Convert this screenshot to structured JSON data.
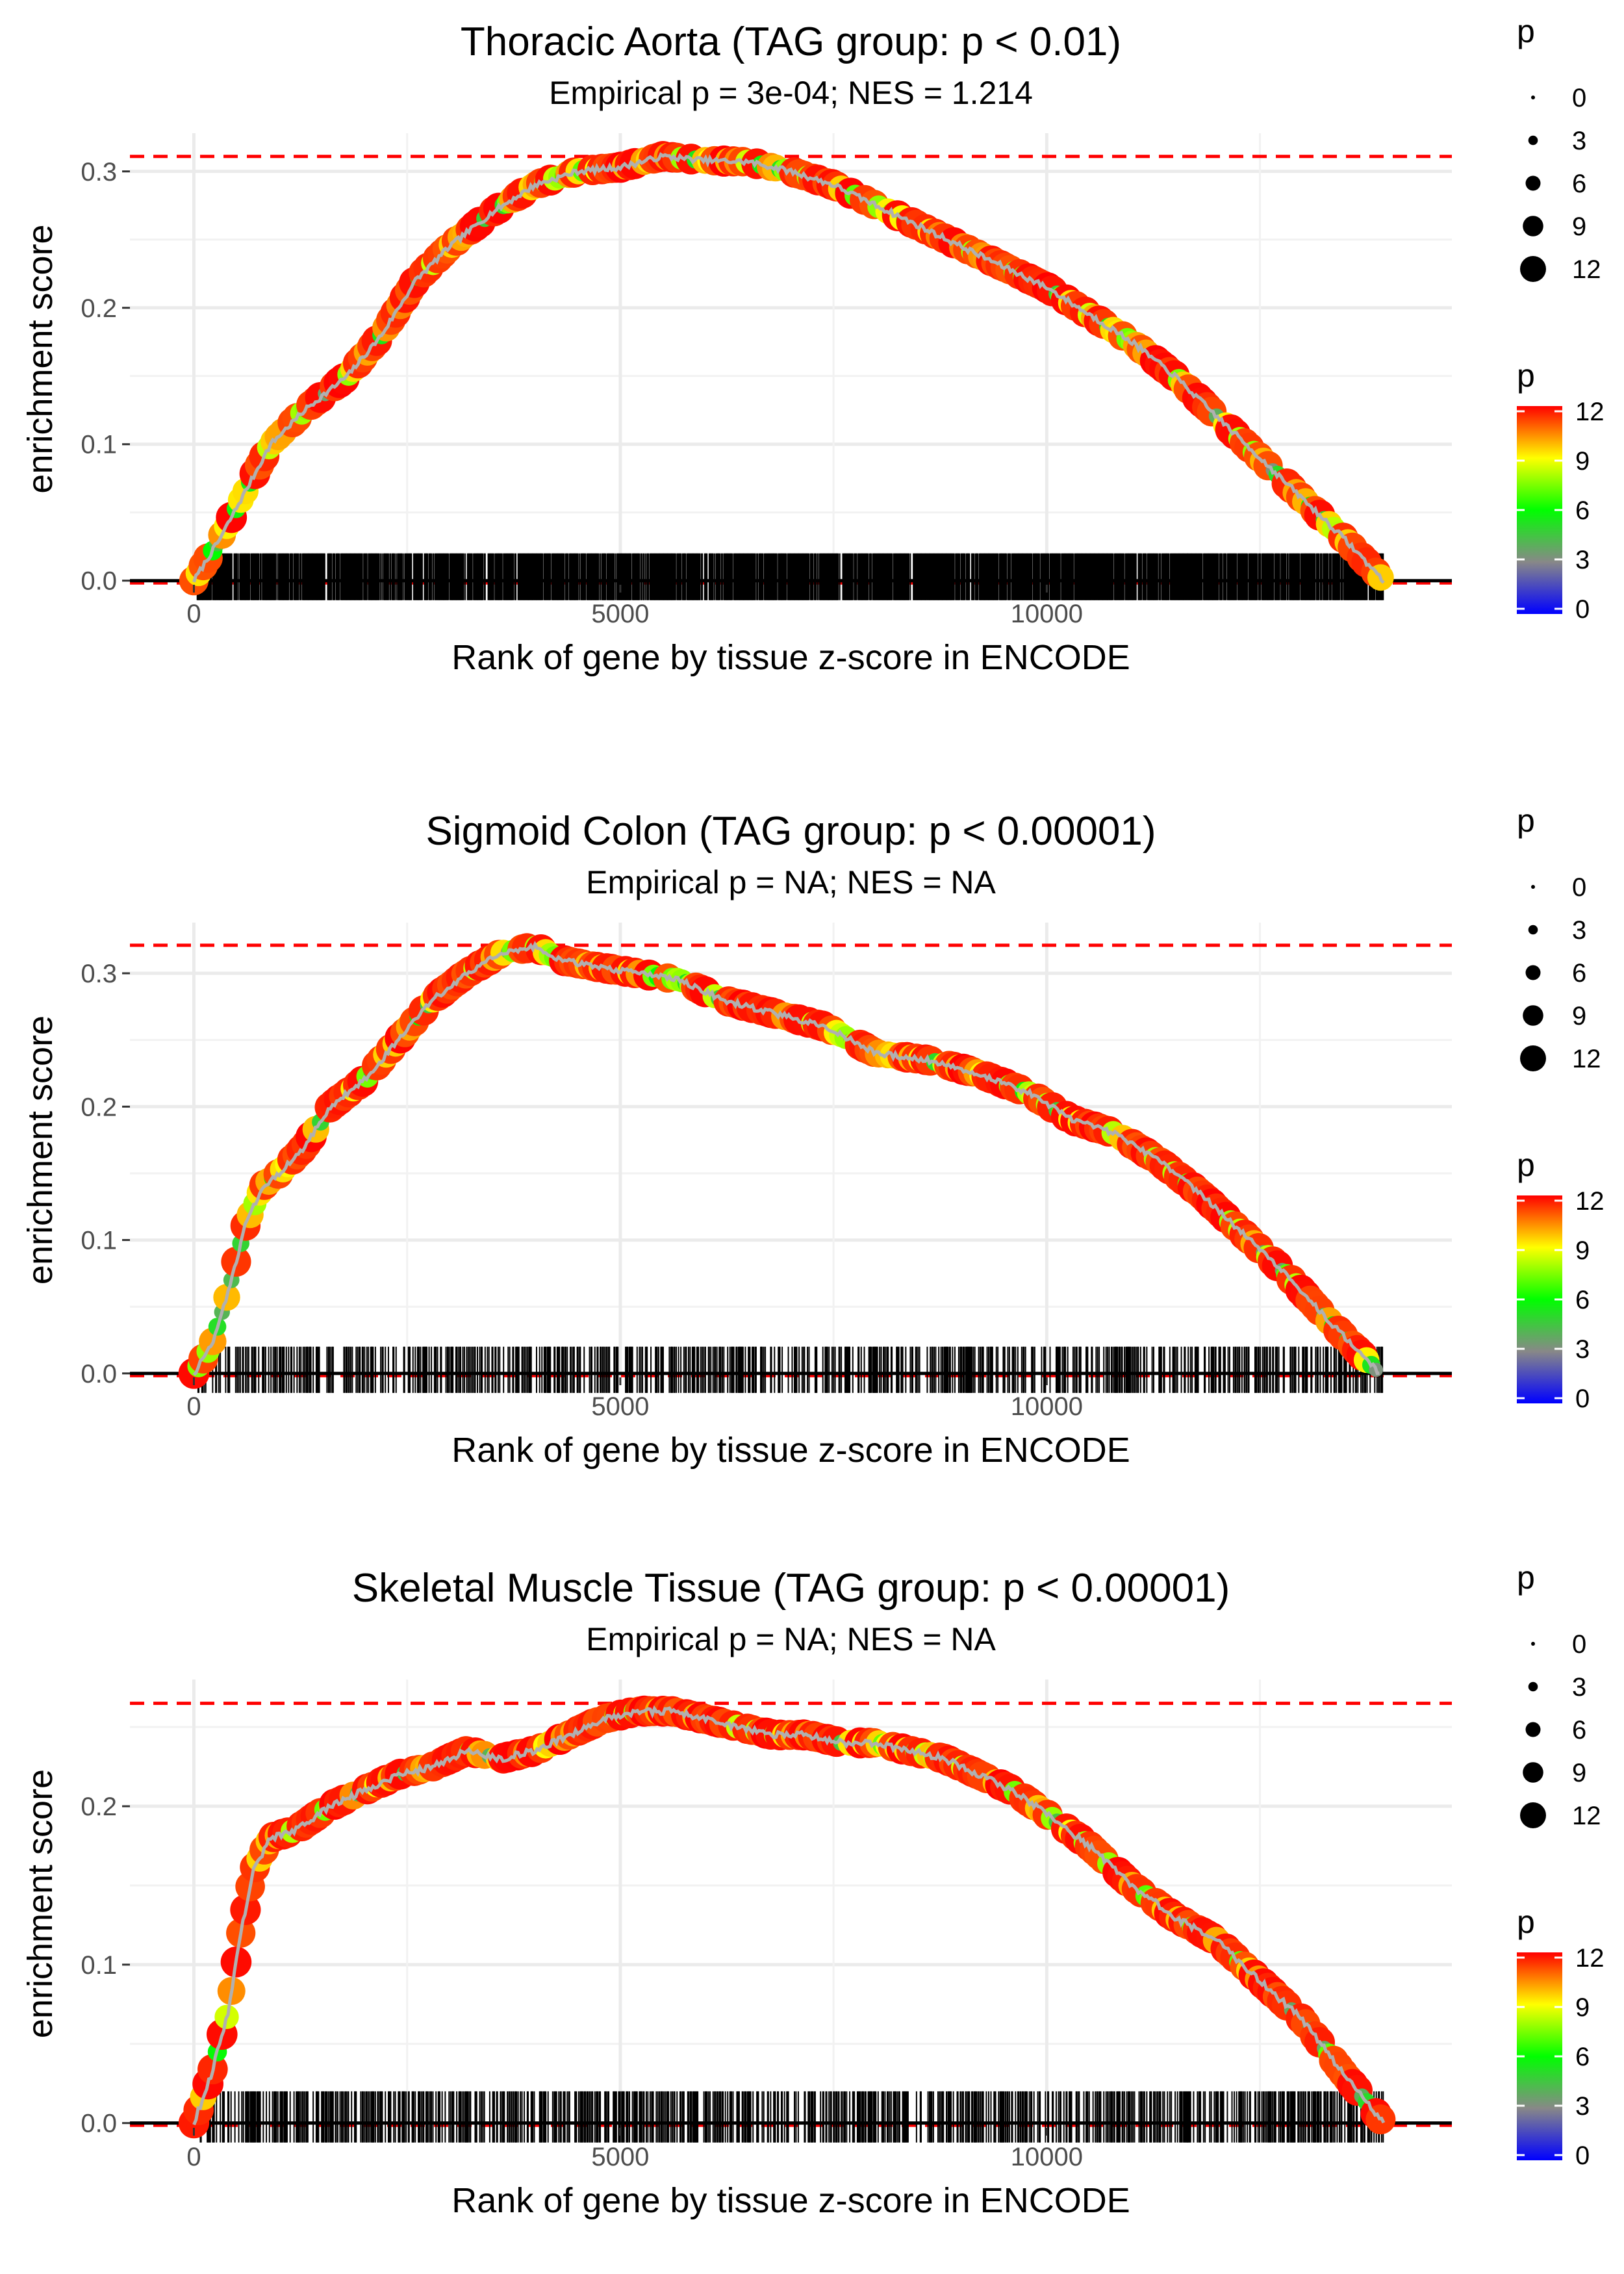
{
  "chart_data": [
    {
      "type": "line",
      "title": "Thoracic Aorta (TAG group: p < 0.01)",
      "subtitle": "Empirical p = 3e-04; NES = 1.214",
      "xlabel": "Rank of gene by tissue z-score in ENCODE",
      "ylabel": "enrichment score",
      "xlim": [
        -750,
        14750
      ],
      "ylim": [
        -0.003,
        0.328
      ],
      "x_ticks": [
        0,
        5000,
        10000
      ],
      "x_tick_labels": [
        "0",
        "5000",
        "10000"
      ],
      "y_ticks": [
        0.0,
        0.1,
        0.2,
        0.3
      ],
      "y_tick_labels": [
        "0.0",
        "0.1",
        "0.2",
        "0.3"
      ],
      "max_es": 0.311,
      "rug_density": 0.9,
      "x": [
        0,
        300,
        600,
        900,
        1300,
        1800,
        2200,
        2600,
        3000,
        3500,
        4000,
        4500,
        5000,
        5500,
        6000,
        6500,
        7000,
        7500,
        8000,
        8500,
        9000,
        9500,
        10000,
        10500,
        11000,
        11500,
        12000,
        12500,
        13000,
        13500,
        13950
      ],
      "y": [
        0.0,
        0.03,
        0.065,
        0.1,
        0.125,
        0.15,
        0.18,
        0.22,
        0.245,
        0.27,
        0.29,
        0.3,
        0.303,
        0.311,
        0.308,
        0.307,
        0.3,
        0.29,
        0.275,
        0.26,
        0.245,
        0.23,
        0.215,
        0.195,
        0.175,
        0.15,
        0.12,
        0.09,
        0.06,
        0.03,
        0.0
      ],
      "legend_size_title": "p",
      "legend_size_labels": [
        "0",
        "3",
        "6",
        "9",
        "12"
      ],
      "legend_color_title": "p",
      "legend_color_labels": [
        "12",
        "9",
        "6",
        "3",
        "0"
      ]
    },
    {
      "type": "line",
      "title": "Sigmoid Colon (TAG group: p < 0.00001)",
      "subtitle": "Empirical p = NA; NES = NA",
      "xlabel": "Rank of gene by tissue z-score in ENCODE",
      "ylabel": "enrichment score",
      "xlim": [
        -750,
        14750
      ],
      "ylim": [
        -0.003,
        0.338
      ],
      "x_ticks": [
        0,
        5000,
        10000
      ],
      "x_tick_labels": [
        "0",
        "5000",
        "10000"
      ],
      "y_ticks": [
        0.0,
        0.1,
        0.2,
        0.3
      ],
      "y_tick_labels": [
        "0.0",
        "0.1",
        "0.2",
        "0.3"
      ],
      "max_es": 0.321,
      "rug_density": 0.45,
      "x": [
        0,
        200,
        400,
        600,
        800,
        1000,
        1300,
        1600,
        2000,
        2400,
        2800,
        3200,
        3600,
        4000,
        4300,
        4700,
        5200,
        5700,
        6200,
        6800,
        7400,
        8000,
        8600,
        9200,
        9800,
        10300,
        10800,
        11300,
        11800,
        12300,
        12800,
        13300,
        13900
      ],
      "y": [
        0.0,
        0.02,
        0.06,
        0.11,
        0.14,
        0.15,
        0.17,
        0.2,
        0.22,
        0.25,
        0.28,
        0.3,
        0.315,
        0.32,
        0.31,
        0.305,
        0.3,
        0.295,
        0.28,
        0.27,
        0.26,
        0.24,
        0.235,
        0.225,
        0.21,
        0.19,
        0.18,
        0.16,
        0.135,
        0.105,
        0.075,
        0.04,
        0.0
      ],
      "legend_size_title": "p",
      "legend_size_labels": [
        "0",
        "3",
        "6",
        "9",
        "12"
      ],
      "legend_color_title": "p",
      "legend_color_labels": [
        "12",
        "9",
        "6",
        "3",
        "0"
      ]
    },
    {
      "type": "line",
      "title": "Skeletal Muscle Tissue (TAG group: p < 0.00001)",
      "subtitle": "Empirical p = NA; NES = NA",
      "xlabel": "Rank of gene by tissue z-score in ENCODE",
      "ylabel": "enrichment score",
      "xlim": [
        -750,
        14750
      ],
      "ylim": [
        -0.003,
        0.28
      ],
      "x_ticks": [
        0,
        5000,
        10000
      ],
      "x_tick_labels": [
        "0",
        "5000",
        "10000"
      ],
      "y_ticks": [
        0.0,
        0.1,
        0.2
      ],
      "y_tick_labels": [
        "0.0",
        "0.1",
        "0.2"
      ],
      "max_es": 0.265,
      "rug_density": 0.5,
      "x": [
        0,
        200,
        400,
        550,
        700,
        900,
        1200,
        1600,
        2000,
        2400,
        2800,
        3200,
        3600,
        4000,
        4400,
        4800,
        5200,
        5600,
        6000,
        6400,
        6800,
        7200,
        7600,
        8000,
        8400,
        8800,
        9200,
        9600,
        10000,
        10500,
        11000,
        11500,
        12000,
        12500,
        13000,
        13500,
        13950
      ],
      "y": [
        0.0,
        0.03,
        0.07,
        0.12,
        0.16,
        0.18,
        0.185,
        0.2,
        0.21,
        0.22,
        0.225,
        0.235,
        0.23,
        0.235,
        0.245,
        0.255,
        0.26,
        0.26,
        0.255,
        0.25,
        0.245,
        0.245,
        0.24,
        0.24,
        0.235,
        0.23,
        0.22,
        0.21,
        0.195,
        0.175,
        0.15,
        0.13,
        0.115,
        0.09,
        0.065,
        0.03,
        0.0
      ],
      "legend_size_title": "p",
      "legend_size_labels": [
        "0",
        "3",
        "6",
        "9",
        "12"
      ],
      "legend_color_title": "p",
      "legend_color_labels": [
        "12",
        "9",
        "6",
        "3",
        "0"
      ]
    }
  ]
}
